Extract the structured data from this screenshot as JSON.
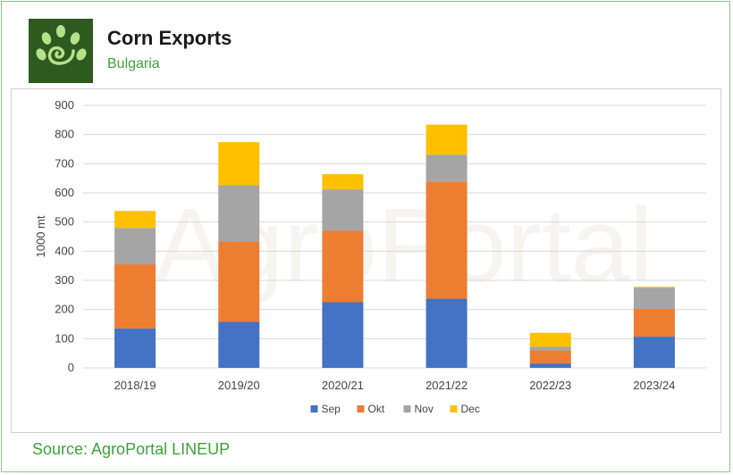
{
  "header": {
    "title": "Corn Exports",
    "subtitle": "Bulgaria",
    "logo_icon": "agroportal-spiral-leaf-logo"
  },
  "source": "Source: AgroPortal LINEUP",
  "watermark": "AgroPortal",
  "colors": {
    "brand_green": "#3ea23a",
    "logo_bg": "#2d5a1f"
  },
  "chart_data": {
    "type": "bar",
    "stacked": true,
    "categories": [
      "2018/19",
      "2019/20",
      "2020/21",
      "2021/22",
      "2022/23",
      "2023/24"
    ],
    "series": [
      {
        "name": "Sep",
        "color": "#4472c4",
        "values": [
          135,
          158,
          225,
          237,
          15,
          107
        ]
      },
      {
        "name": "Okt",
        "color": "#ed7d31",
        "values": [
          220,
          275,
          245,
          402,
          45,
          95
        ]
      },
      {
        "name": "Nov",
        "color": "#a5a5a5",
        "values": [
          125,
          193,
          142,
          92,
          12,
          73
        ]
      },
      {
        "name": "Dec",
        "color": "#ffc000",
        "values": [
          58,
          148,
          52,
          103,
          48,
          3
        ]
      }
    ],
    "ylabel": "1000 mt",
    "xlabel": "",
    "ylim": [
      0,
      900
    ],
    "yticks": [
      "0",
      "100",
      "200",
      "300",
      "400",
      "500",
      "600",
      "700",
      "800",
      "900"
    ],
    "grid": true,
    "legend_position": "bottom"
  }
}
